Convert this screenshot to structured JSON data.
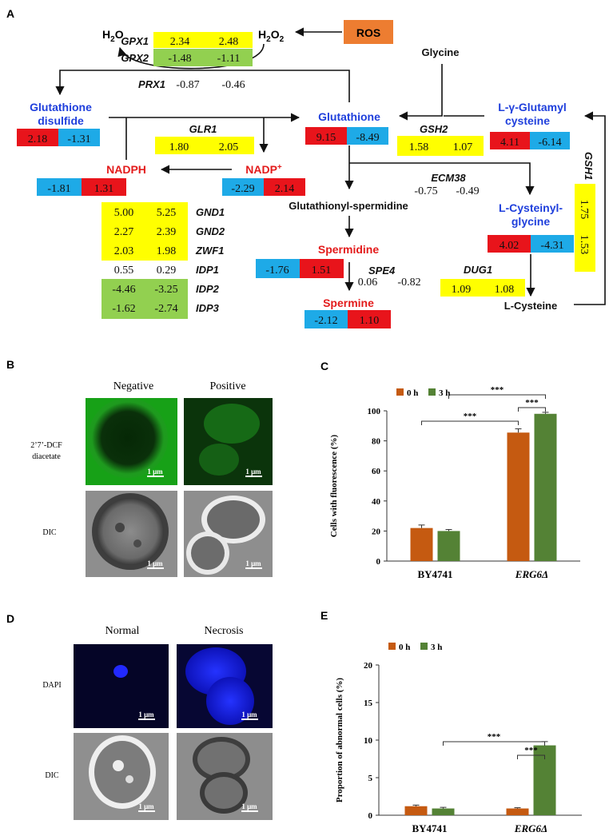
{
  "colors": {
    "yellow": "#ffff00",
    "green": "#92d050",
    "blue": "#1eaae7",
    "red": "#e8141b",
    "ros": "#ed7d31",
    "orange_bar": "#c55a11",
    "green_bar": "#548235",
    "metabolite_blue": "#1f3fdc",
    "metabolite_red": "#e31b1b"
  },
  "panel_a": {
    "label": "A",
    "ros": "ROS",
    "h2o": "H",
    "h2o_sub": "2",
    "h2o_tail": "O",
    "h2o2": "H",
    "h2o2_sub1": "2",
    "h2o2_mid": "O",
    "h2o2_sub2": "2",
    "glycine": "Glycine",
    "genes": {
      "gpx1": {
        "name": "GPX1",
        "v1": "2.34",
        "v2": "2.48"
      },
      "gpx2": {
        "name": "GPX2",
        "v1": "-1.48",
        "v2": "-1.11"
      },
      "prx1": {
        "name": "PRX1",
        "v1": "-0.87",
        "v2": "-0.46"
      },
      "glr1": {
        "name": "GLR1",
        "v1": "1.80",
        "v2": "2.05"
      },
      "gsh2": {
        "name": "GSH2",
        "v1": "1.58",
        "v2": "1.07"
      },
      "gsh1": {
        "name": "GSH1",
        "v1": "1.75",
        "v2": "1.53"
      },
      "ecm38": {
        "name": "ECM38",
        "v1": "-0.75",
        "v2": "-0.49"
      },
      "dug1": {
        "name": "DUG1",
        "v1": "1.09",
        "v2": "1.08"
      },
      "spe4": {
        "name": "SPE4",
        "v1": "0.06",
        "v2": "-0.82"
      },
      "gnd1": {
        "name": "GND1",
        "v1": "5.00",
        "v2": "5.25"
      },
      "gnd2": {
        "name": "GND2",
        "v1": "2.27",
        "v2": "2.39"
      },
      "zwf1": {
        "name": "ZWF1",
        "v1": "2.03",
        "v2": "1.98"
      },
      "idp1": {
        "name": "IDP1",
        "v1": "0.55",
        "v2": "0.29"
      },
      "idp2": {
        "name": "IDP2",
        "v1": "-4.46",
        "v2": "-3.25"
      },
      "idp3": {
        "name": "IDP3",
        "v1": "-1.62",
        "v2": "-2.74"
      }
    },
    "metabolites": {
      "gssg": {
        "line1": "Glutathione",
        "line2": "disulfide",
        "v1": "2.18",
        "v2": "-1.31"
      },
      "gsh": {
        "name": "Glutathione",
        "v1": "9.15",
        "v2": "-8.49"
      },
      "glucys": {
        "line1": "L-γ-Glutamyl",
        "line2": "cysteine",
        "v1": "4.11",
        "v2": "-6.14"
      },
      "nadph": {
        "name": "NADPH",
        "v1": "-1.81",
        "v2": "1.31"
      },
      "nadp": {
        "name": "NADP",
        "sup": "+",
        "v1": "-2.29",
        "v2": "2.14"
      },
      "glut_sperm": {
        "name": "Glutathionyl-spermidine"
      },
      "cysgly": {
        "line1": "L-Cysteinyl-",
        "line2": "glycine",
        "v1": "4.02",
        "v2": "-4.31"
      },
      "spermidine": {
        "name": "Spermidine",
        "v1": "-1.76",
        "v2": "1.51"
      },
      "spermine": {
        "name": "Spermine",
        "v1": "-2.12",
        "v2": "1.10"
      },
      "cysteine": {
        "name": "L-Cysteine"
      }
    }
  },
  "panel_b": {
    "label": "B",
    "col_negative": "Negative",
    "col_positive": "Positive",
    "row_dcf_line1": "2’7’-DCF",
    "row_dcf_line2": "diacetate",
    "row_dic": "DIC",
    "scale": "1 μm"
  },
  "panel_d": {
    "label": "D",
    "col_normal": "Normal",
    "col_necrosis": "Necrosis",
    "row_dapi": "DAPI",
    "row_dic": "DIC",
    "scale": "1 μm"
  },
  "chart_data": [
    {
      "panel": "C",
      "type": "bar",
      "categories": [
        "BY4741",
        "ERG6Δ"
      ],
      "series": [
        {
          "name": "0 h",
          "values": [
            22,
            85.5
          ],
          "errors": [
            2,
            2.5
          ]
        },
        {
          "name": "3 h",
          "values": [
            20,
            98
          ],
          "errors": [
            1,
            1
          ]
        }
      ],
      "ylabel": "Cells with fluorescence (%)",
      "ylim": [
        0,
        100
      ],
      "yticks": [
        0,
        20,
        40,
        60,
        80,
        100
      ],
      "significance": [
        "***",
        "***",
        "***"
      ],
      "legend": "top-left"
    },
    {
      "panel": "E",
      "type": "bar",
      "categories": [
        "BY4741",
        "ERG6Δ"
      ],
      "series": [
        {
          "name": "0 h",
          "values": [
            1.2,
            0.9
          ],
          "errors": [
            0.15,
            0.1
          ]
        },
        {
          "name": "3 h",
          "values": [
            0.9,
            9.3
          ],
          "errors": [
            0.15,
            0.5
          ]
        }
      ],
      "ylabel": "Proportion of abnormal cells (%)",
      "ylim": [
        0,
        20
      ],
      "yticks": [
        0,
        5,
        10,
        15,
        20
      ],
      "significance": [
        "***",
        "***"
      ],
      "legend": "top-left"
    }
  ],
  "panel_c_label": "C",
  "panel_e_label": "E"
}
